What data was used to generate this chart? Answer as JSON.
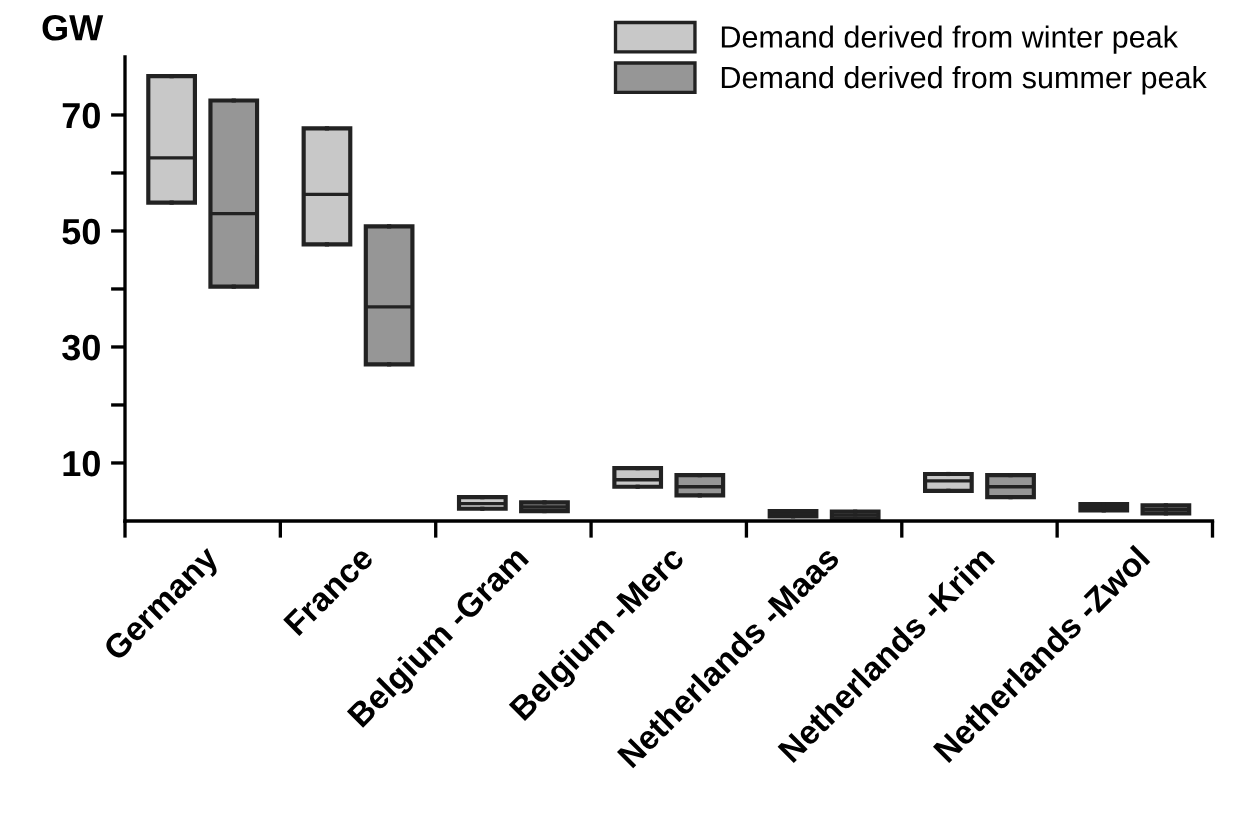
{
  "chart_data": {
    "type": "box",
    "ylabel": "GW",
    "categories": [
      "Germany",
      "France",
      "Belgium -Gram",
      "Belgium -Merc",
      "Netherlands -Maas",
      "Netherlands -Krim",
      "Netherlands -Zwol"
    ],
    "series": [
      {
        "name": "Demand derived from winter peak",
        "color": "#c8c8c8",
        "boxes": [
          {
            "low": 54.9,
            "q1": 54.9,
            "median": 62.6,
            "q3": 76.7,
            "high": 76.7
          },
          {
            "low": 47.7,
            "q1": 47.7,
            "median": 56.3,
            "q3": 67.7,
            "high": 67.7
          },
          {
            "low": 2.1,
            "q1": 2.1,
            "median": 3.0,
            "q3": 4.1,
            "high": 4.1
          },
          {
            "low": 5.9,
            "q1": 5.9,
            "median": 7.1,
            "q3": 9.1,
            "high": 9.1
          },
          {
            "low": 0.8,
            "q1": 0.8,
            "median": 1.2,
            "q3": 1.7,
            "high": 1.7
          },
          {
            "low": 5.2,
            "q1": 5.2,
            "median": 6.9,
            "q3": 8.1,
            "high": 8.1
          },
          {
            "low": 1.8,
            "q1": 1.8,
            "median": 2.3,
            "q3": 2.9,
            "high": 2.9
          }
        ]
      },
      {
        "name": "Demand derived from summer peak",
        "color": "#969696",
        "boxes": [
          {
            "low": 40.4,
            "q1": 40.4,
            "median": 53.0,
            "q3": 72.5,
            "high": 72.5
          },
          {
            "low": 27.0,
            "q1": 27.0,
            "median": 36.9,
            "q3": 50.8,
            "high": 50.8
          },
          {
            "low": 1.7,
            "q1": 1.7,
            "median": 2.4,
            "q3": 3.2,
            "high": 3.2
          },
          {
            "low": 4.4,
            "q1": 4.4,
            "median": 5.9,
            "q3": 7.9,
            "high": 7.9
          },
          {
            "low": 0.4,
            "q1": 0.4,
            "median": 1.0,
            "q3": 1.6,
            "high": 1.6
          },
          {
            "low": 4.1,
            "q1": 4.1,
            "median": 5.9,
            "q3": 7.9,
            "high": 7.9
          },
          {
            "low": 1.3,
            "q1": 1.3,
            "median": 2.0,
            "q3": 2.7,
            "high": 2.7
          }
        ]
      }
    ],
    "ylim": [
      0,
      80
    ],
    "yticks": [
      10,
      {
        "value": 20,
        "label": null
      },
      30,
      {
        "value": 40,
        "label": null
      },
      50,
      {
        "value": 60,
        "label": null
      },
      70
    ],
    "legend": "top right",
    "grid": false
  }
}
